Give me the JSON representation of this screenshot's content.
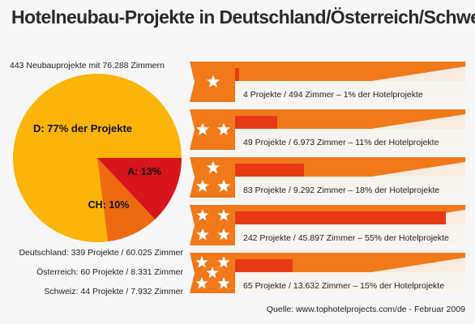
{
  "title": "Hotelneubau-Projekte in Deutschland/Österreich/Schweiz",
  "subtitle": "443 Neubauprojekte mit 76.288 Zimmern",
  "countries": [
    "Deutschland: 339 Projekte / 60.025 Zimmer",
    "Österreich: 60 Projekte / 8.331 Zimmer",
    "Schweiz: 44 Projekte / 7.932 Zimmer"
  ],
  "source": "Quelle: www.tophotelprojects.com/de - Februar 2009",
  "colors": {
    "pie_d": "#fbb40a",
    "pie_ch": "#ee6a10",
    "pie_a": "#d8141c",
    "bar": "#e63a17",
    "band": "#f07a1a",
    "band_dark": "#e05a10"
  },
  "chart_data": [
    {
      "type": "pie",
      "slices": [
        {
          "label": "D: 77% der Projekte",
          "value": 77
        },
        {
          "label": "A: 13%",
          "value": 13
        },
        {
          "label": "CH: 10%",
          "value": 10
        }
      ]
    },
    {
      "type": "bar",
      "orientation": "horizontal",
      "categories": [
        "1 Stern",
        "2 Sterne",
        "3 Sterne",
        "4 Sterne",
        "5 Sterne"
      ],
      "stars": [
        1,
        2,
        3,
        4,
        5
      ],
      "values": [
        1,
        11,
        18,
        55,
        15
      ],
      "labels": [
        "4 Projekte / 494 Zimmer – 1% der Hotelprojekte",
        "49 Projekte / 6.973 Zimmer – 11% der Hotelprojekte",
        "83 Projekte / 9.292 Zimmer – 18% der Hotelprojekte",
        "242 Projekte / 45.897 Zimmer – 55% der Hotelprojekte",
        "65 Projekte / 13.632 Zimmer – 15% der Hotelprojekte"
      ],
      "xlim": [
        0,
        55
      ]
    }
  ]
}
